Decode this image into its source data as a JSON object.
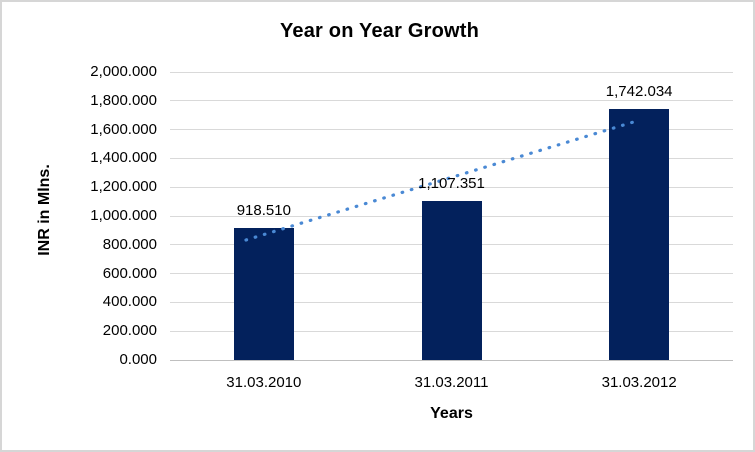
{
  "chart_data": {
    "type": "bar",
    "title": "Year on Year Growth",
    "xlabel": "Years",
    "ylabel": "INR in Mlns.",
    "categories": [
      "31.03.2010",
      "31.03.2011",
      "31.03.2012"
    ],
    "values": [
      918.51,
      1107.351,
      1742.034
    ],
    "value_labels": [
      "918.510",
      "1,107.351",
      "1,742.034"
    ],
    "ylim": [
      0,
      2000
    ],
    "ytick_step": 200,
    "ytick_labels": [
      "0.000",
      "200.000",
      "400.000",
      "600.000",
      "800.000",
      "1,000.000",
      "1,200.000",
      "1,400.000",
      "1,600.000",
      "1,800.000",
      "2,000.000"
    ],
    "grid": true,
    "legend": false,
    "trendline": {
      "type": "linear",
      "style": "dotted",
      "endpoint_values": [
        860,
        1720
      ]
    },
    "colors": {
      "bar": "#03215c",
      "trendline": "#4a89d4",
      "gridline": "#d9d9d9",
      "axis_line": "#bfbfbf",
      "text": "#000000",
      "frame_border": "#d6d6d6",
      "background": "#ffffff"
    }
  }
}
